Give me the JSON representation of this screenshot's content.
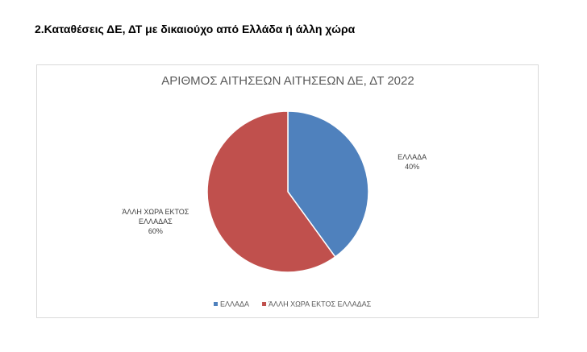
{
  "heading": "2.Καταθέσεις ΔΕ, ΔΤ με δικαιούχο από Ελλάδα ή άλλη χώρα",
  "chart_data": {
    "type": "pie",
    "title": "ΑΡΙΘΜΟΣ ΑΙΤΗΣΕΩΝ ΑΙΤΗΣΕΩΝ ΔΕ, ΔΤ 2022",
    "categories": [
      "ΕΛΛΑΔΑ",
      "ΆΛΛΗ ΧΩΡΑ ΕΚΤΟΣ ΕΛΛΑΔΑΣ"
    ],
    "values": [
      40,
      60
    ],
    "value_labels": [
      "40%",
      "60%"
    ],
    "colors": [
      "#4f81bd",
      "#c0504d"
    ],
    "legend": "bottom"
  }
}
